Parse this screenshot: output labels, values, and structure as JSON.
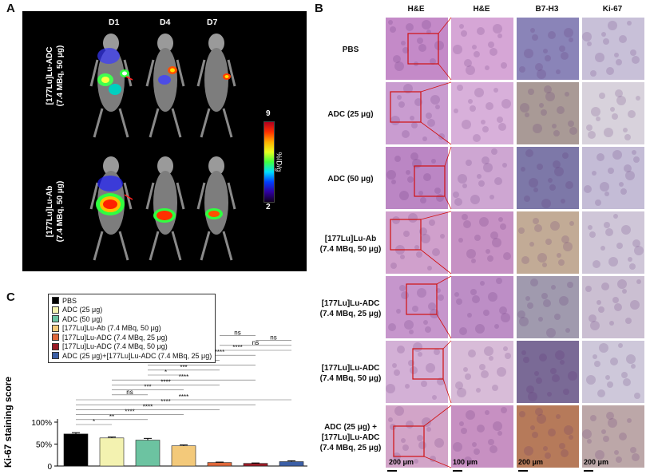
{
  "panels": {
    "a": {
      "letter": "A",
      "days": [
        "D1",
        "D4",
        "D7"
      ],
      "row1_label": [
        "[177Lu]Lu-ADC",
        "(7.4 MBq, 50 μg)"
      ],
      "row2_label": [
        "[177Lu]Lu-Ab",
        "(7.4 MBq, 50 μg)"
      ],
      "colorbar": {
        "max": "9",
        "min": "2",
        "unit": "%ID/g"
      }
    },
    "b": {
      "letter": "B",
      "columns": [
        "H&E",
        "H&E",
        "B7-H3",
        "Ki-67"
      ],
      "rows": [
        [
          "PBS"
        ],
        [
          "ADC (25 μg)"
        ],
        [
          "ADC (50 μg)"
        ],
        [
          "[177Lu]Lu-Ab",
          "(7.4 MBq, 50 μg)"
        ],
        [
          "[177Lu]Lu-ADC",
          "(7.4 MBq, 25 μg)"
        ],
        [
          "[177Lu]Lu-ADC",
          "(7.4 MBq, 50 μg)"
        ],
        [
          "ADC (25 μg) +",
          "[177Lu]Lu-ADC",
          "(7.4 MBq, 25 μg)"
        ]
      ],
      "scalebars": [
        "200 μm",
        "100 μm",
        "200 μm",
        "200 μm"
      ]
    },
    "c": {
      "letter": "C"
    }
  },
  "chart_data": {
    "type": "bar",
    "ylabel": "Ki-67 staining score",
    "yticks": [
      "0",
      "50%",
      "100%"
    ],
    "ylim": [
      0,
      1.0
    ],
    "series": [
      {
        "name": "PBS",
        "value": 0.73,
        "color": "#000000"
      },
      {
        "name": "ADC (25 μg)",
        "value": 0.64,
        "color": "#f3f2b0"
      },
      {
        "name": "ADC (50 μg)",
        "value": 0.59,
        "color": "#6cc3a1"
      },
      {
        "name": "[177Lu]Lu-Ab (7.4 MBq, 50 μg)",
        "value": 0.46,
        "color": "#f3c97a"
      },
      {
        "name": "[177Lu]Lu-ADC (7.4 MBq, 25 μg)",
        "value": 0.08,
        "color": "#e0683a"
      },
      {
        "name": "[177Lu]Lu-ADC (7.4 MBq, 50 μg)",
        "value": 0.06,
        "color": "#9a1b26"
      },
      {
        "name": "ADC (25 μg)+[177Lu]Lu-ADC (7.4 MBq, 25 μg)",
        "value": 0.1,
        "color": "#3b5fa6"
      }
    ],
    "errors": [
      0.03,
      0.02,
      0.04,
      0.02,
      0.01,
      0.01,
      0.02
    ],
    "significance": [
      {
        "from": 0,
        "to": 1,
        "label": "*"
      },
      {
        "from": 0,
        "to": 2,
        "label": "**"
      },
      {
        "from": 0,
        "to": 3,
        "label": "****"
      },
      {
        "from": 0,
        "to": 4,
        "label": "****"
      },
      {
        "from": 0,
        "to": 5,
        "label": "****"
      },
      {
        "from": 0,
        "to": 6,
        "label": "****"
      },
      {
        "from": 1,
        "to": 2,
        "label": "ns"
      },
      {
        "from": 1,
        "to": 3,
        "label": "***"
      },
      {
        "from": 1,
        "to": 4,
        "label": "****"
      },
      {
        "from": 1,
        "to": 5,
        "label": "****"
      },
      {
        "from": 2,
        "to": 3,
        "label": "*"
      },
      {
        "from": 2,
        "to": 4,
        "label": "***"
      },
      {
        "from": 2,
        "to": 5,
        "label": "****"
      },
      {
        "from": 3,
        "to": 4,
        "label": "****"
      },
      {
        "from": 3,
        "to": 5,
        "label": "****"
      },
      {
        "from": 3,
        "to": 6,
        "label": "****"
      },
      {
        "from": 4,
        "to": 6,
        "label": "ns"
      },
      {
        "from": 5,
        "to": 6,
        "label": "ns"
      },
      {
        "from": 4,
        "to": 5,
        "label": "ns"
      }
    ]
  }
}
